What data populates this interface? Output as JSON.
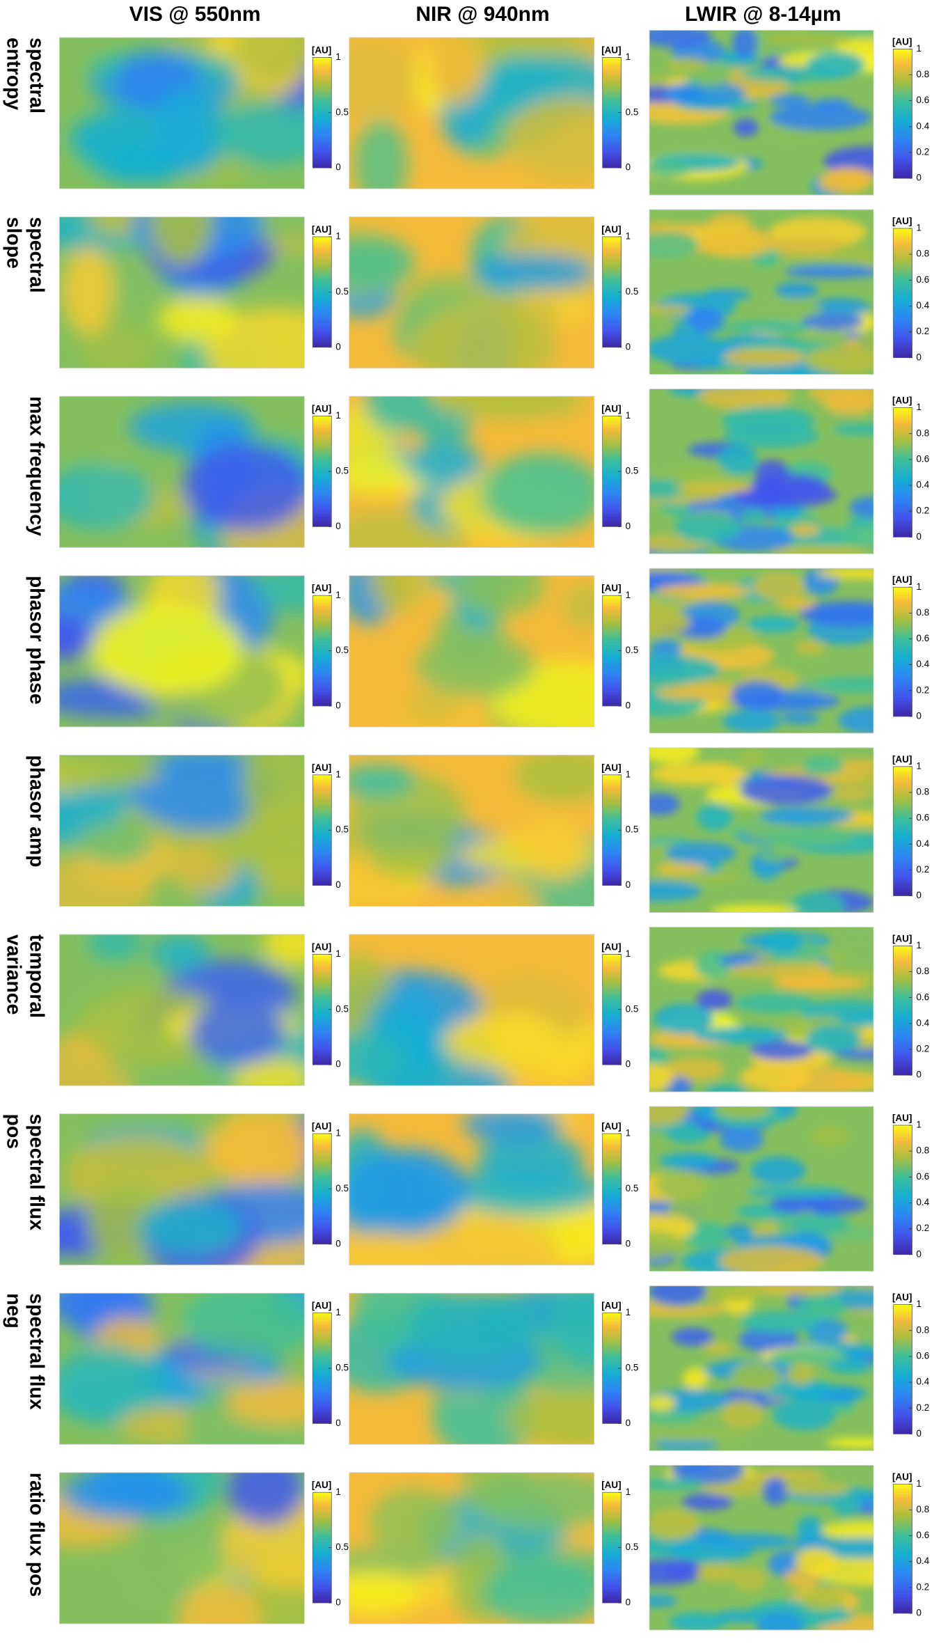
{
  "columns": [
    {
      "title": "VIS @ 550nm",
      "colorbar": {
        "label": "[AU]",
        "ticks": [
          0,
          0.5,
          1
        ]
      }
    },
    {
      "title": "NIR @ 940nm",
      "colorbar": {
        "label": "[AU]",
        "ticks": [
          0,
          0.5,
          1
        ]
      }
    },
    {
      "title": "LWIR @ 8-14µm",
      "colorbar": {
        "label": "[AU]",
        "ticks": [
          0,
          0.2,
          0.4,
          0.6,
          0.8,
          1
        ]
      }
    }
  ],
  "rows": [
    {
      "label": [
        "spectral",
        "entropy"
      ]
    },
    {
      "label": [
        "spectral",
        "slope"
      ]
    },
    {
      "label": [
        "max frequency"
      ]
    },
    {
      "label": [
        "phasor phase"
      ]
    },
    {
      "label": [
        "phasor amp"
      ]
    },
    {
      "label": [
        "temporal",
        "variance"
      ]
    },
    {
      "label": [
        "spectral flux",
        "pos"
      ]
    },
    {
      "label": [
        "spectral flux",
        "neg"
      ]
    },
    {
      "label": [
        "ratio flux pos"
      ]
    }
  ]
}
